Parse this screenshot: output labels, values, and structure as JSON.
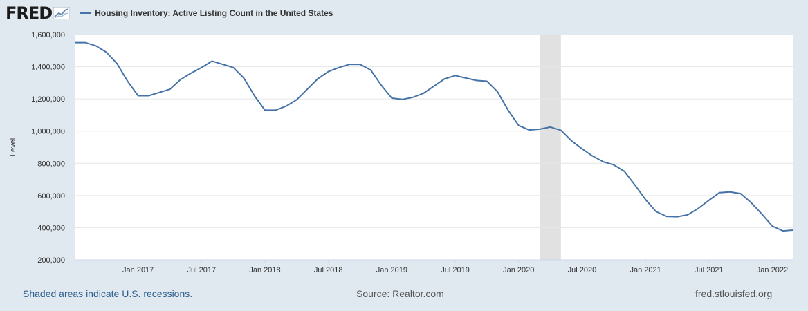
{
  "header": {
    "logo_text": "FRED",
    "series_title": "Housing Inventory: Active Listing Count in the United States"
  },
  "footer": {
    "recession_note": "Shaded areas indicate U.S. recessions.",
    "source": "Source: Realtor.com",
    "site": "fred.stlouisfed.org"
  },
  "colors": {
    "line": "#4572a7",
    "recession": "#e1e1e1",
    "grid": "#e6e6e6",
    "background": "#e1e9f0"
  },
  "chart_data": {
    "type": "line",
    "title": "Housing Inventory: Active Listing Count in the United States",
    "xlabel": "",
    "ylabel": "Level",
    "ylim": [
      200000,
      1600000
    ],
    "yticks": [
      200000,
      400000,
      600000,
      800000,
      1000000,
      1200000,
      1400000,
      1600000
    ],
    "ytick_labels": [
      "200,000",
      "400,000",
      "600,000",
      "800,000",
      "1,000,000",
      "1,200,000",
      "1,400,000",
      "1,600,000"
    ],
    "xlim": [
      "2016-07",
      "2022-03"
    ],
    "xticks": [
      "2017-01",
      "2017-07",
      "2018-01",
      "2018-07",
      "2019-01",
      "2019-07",
      "2020-01",
      "2020-07",
      "2021-01",
      "2021-07",
      "2022-01"
    ],
    "xtick_labels": [
      "Jan 2017",
      "Jul 2017",
      "Jan 2018",
      "Jul 2018",
      "Jan 2019",
      "Jul 2019",
      "Jan 2020",
      "Jul 2020",
      "Jan 2021",
      "Jul 2021",
      "Jan 2022"
    ],
    "grid": true,
    "legend": "top-left",
    "recessions": [
      {
        "start": "2020-03",
        "end": "2020-05"
      }
    ],
    "series": [
      {
        "name": "Housing Inventory: Active Listing Count in the United States",
        "x": [
          "2016-07",
          "2016-08",
          "2016-09",
          "2016-10",
          "2016-11",
          "2016-12",
          "2017-01",
          "2017-02",
          "2017-03",
          "2017-04",
          "2017-05",
          "2017-06",
          "2017-07",
          "2017-08",
          "2017-09",
          "2017-10",
          "2017-11",
          "2017-12",
          "2018-01",
          "2018-02",
          "2018-03",
          "2018-04",
          "2018-05",
          "2018-06",
          "2018-07",
          "2018-08",
          "2018-09",
          "2018-10",
          "2018-11",
          "2018-12",
          "2019-01",
          "2019-02",
          "2019-03",
          "2019-04",
          "2019-05",
          "2019-06",
          "2019-07",
          "2019-08",
          "2019-09",
          "2019-10",
          "2019-11",
          "2019-12",
          "2020-01",
          "2020-02",
          "2020-03",
          "2020-04",
          "2020-05",
          "2020-06",
          "2020-07",
          "2020-08",
          "2020-09",
          "2020-10",
          "2020-11",
          "2020-12",
          "2021-01",
          "2021-02",
          "2021-03",
          "2021-04",
          "2021-05",
          "2021-06",
          "2021-07",
          "2021-08",
          "2021-09",
          "2021-10",
          "2021-11",
          "2021-12",
          "2022-01",
          "2022-02",
          "2022-03"
        ],
        "values": [
          1550000,
          1550000,
          1530000,
          1490000,
          1420000,
          1310000,
          1220000,
          1220000,
          1240000,
          1260000,
          1320000,
          1360000,
          1395000,
          1435000,
          1415000,
          1395000,
          1330000,
          1220000,
          1130000,
          1130000,
          1155000,
          1195000,
          1260000,
          1325000,
          1370000,
          1395000,
          1415000,
          1415000,
          1380000,
          1285000,
          1205000,
          1197000,
          1210000,
          1235000,
          1280000,
          1325000,
          1345000,
          1330000,
          1315000,
          1310000,
          1245000,
          1130000,
          1035000,
          1007000,
          1012000,
          1025000,
          1005000,
          940000,
          890000,
          845000,
          810000,
          790000,
          750000,
          665000,
          575000,
          500000,
          470000,
          468000,
          480000,
          520000,
          570000,
          618000,
          622000,
          612000,
          555000,
          485000,
          410000,
          380000,
          385000
        ]
      }
    ]
  }
}
